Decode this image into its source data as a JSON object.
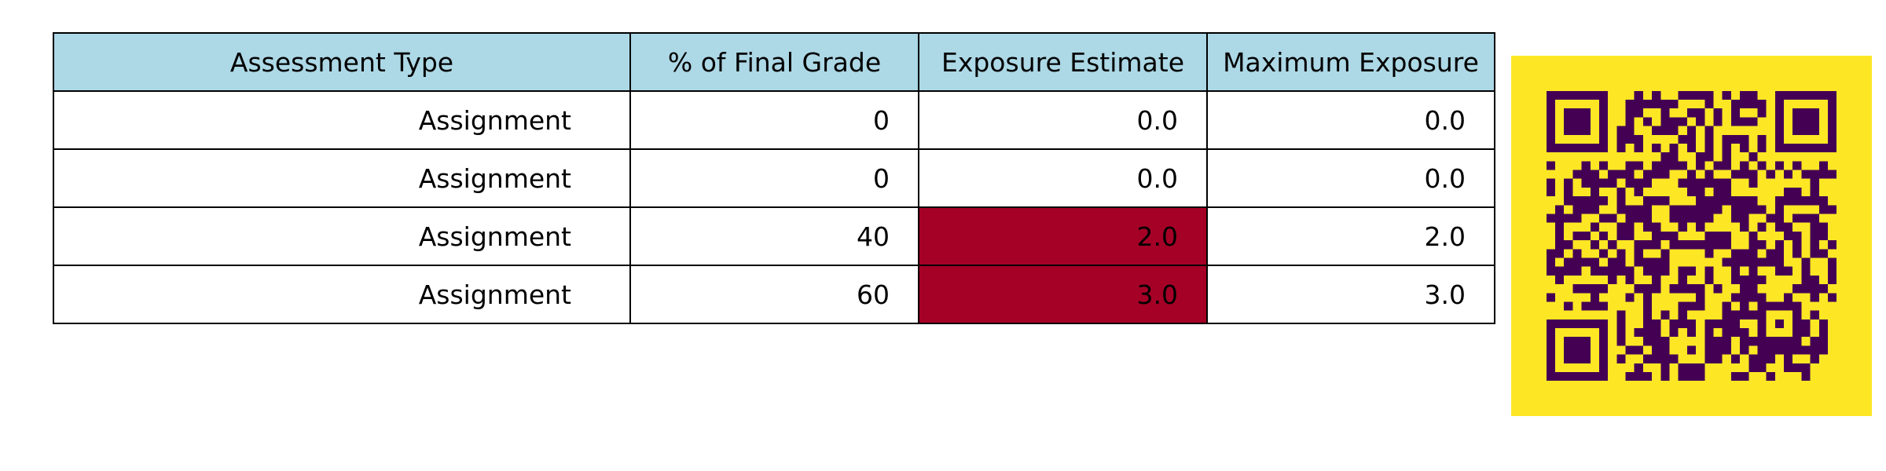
{
  "table": {
    "headers": [
      "Assessment Type",
      "% of Final Grade",
      "Exposure Estimate",
      "Maximum Exposure"
    ],
    "rows": [
      [
        "Assignment",
        "0",
        "0.0",
        "0.0"
      ],
      [
        "Assignment",
        "0",
        "0.0",
        "0.0"
      ],
      [
        "Assignment",
        "40",
        "2.0",
        "2.0"
      ],
      [
        "Assignment",
        "60",
        "3.0",
        "3.0"
      ]
    ],
    "highlight_color": "#a50026",
    "highlighted_cells": [
      [
        2,
        2
      ],
      [
        3,
        2
      ]
    ],
    "header_color": "#add8e6"
  },
  "qr_code": {
    "background_color": "#fde725",
    "module_color": "#440154",
    "icon": "qr-code-icon"
  }
}
